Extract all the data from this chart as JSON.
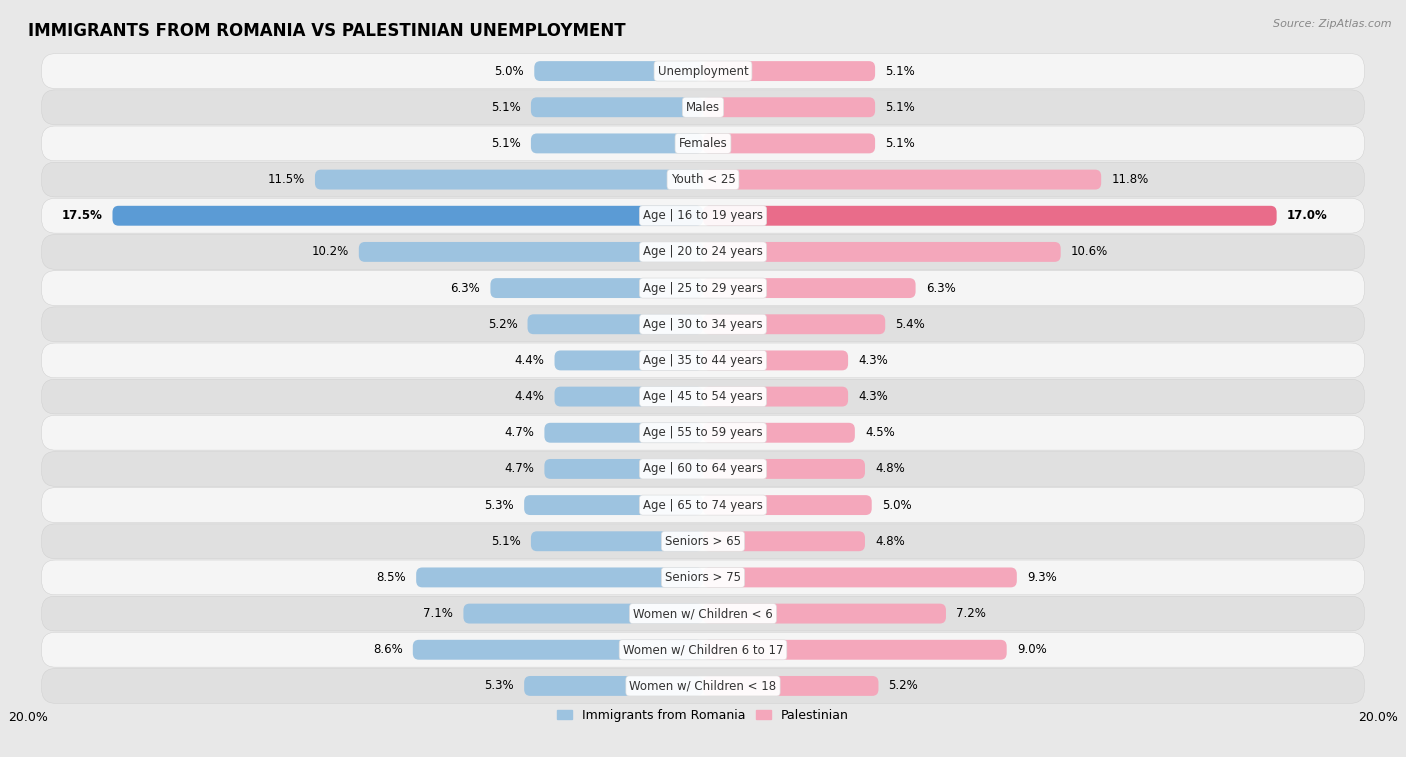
{
  "title": "IMMIGRANTS FROM ROMANIA VS PALESTINIAN UNEMPLOYMENT",
  "source": "Source: ZipAtlas.com",
  "categories": [
    "Unemployment",
    "Males",
    "Females",
    "Youth < 25",
    "Age | 16 to 19 years",
    "Age | 20 to 24 years",
    "Age | 25 to 29 years",
    "Age | 30 to 34 years",
    "Age | 35 to 44 years",
    "Age | 45 to 54 years",
    "Age | 55 to 59 years",
    "Age | 60 to 64 years",
    "Age | 65 to 74 years",
    "Seniors > 65",
    "Seniors > 75",
    "Women w/ Children < 6",
    "Women w/ Children 6 to 17",
    "Women w/ Children < 18"
  ],
  "left_values": [
    5.0,
    5.1,
    5.1,
    11.5,
    17.5,
    10.2,
    6.3,
    5.2,
    4.4,
    4.4,
    4.7,
    4.7,
    5.3,
    5.1,
    8.5,
    7.1,
    8.6,
    5.3
  ],
  "right_values": [
    5.1,
    5.1,
    5.1,
    11.8,
    17.0,
    10.6,
    6.3,
    5.4,
    4.3,
    4.3,
    4.5,
    4.8,
    5.0,
    4.8,
    9.3,
    7.2,
    9.0,
    5.2
  ],
  "left_color": "#9dc3e0",
  "right_color": "#f4a7bb",
  "highlight_left_color": "#5b9bd5",
  "highlight_right_color": "#e96c8a",
  "highlight_row": 4,
  "xlim": 20.0,
  "background_color": "#e8e8e8",
  "row_bg_odd": "#f5f5f5",
  "row_bg_even": "#e0e0e0",
  "label_fontsize": 8.5,
  "value_fontsize": 8.5,
  "title_fontsize": 12
}
